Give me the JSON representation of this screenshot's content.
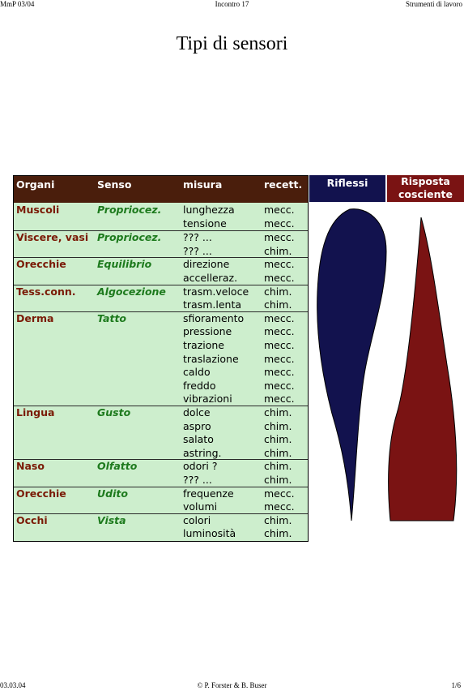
{
  "header": {
    "left": "MmP 03/04",
    "center": "Incontro 17",
    "right": "Strumenti di lavoro"
  },
  "footer": {
    "left": "03.03.04",
    "center": "© P. Forster & B. Buser",
    "right": "1/6"
  },
  "title": "Tipi di sensori",
  "table": {
    "columns": [
      "Organi",
      "Senso",
      "misura",
      "recett."
    ],
    "groups": [
      {
        "organ": "Muscoli",
        "senso": "Propriocez.",
        "rows": [
          [
            "lunghezza",
            "mecc."
          ],
          [
            "tensione",
            "mecc."
          ]
        ]
      },
      {
        "organ": "Viscere, vasi",
        "senso": "Propriocez.",
        "rows": [
          [
            "??? ...",
            "mecc."
          ],
          [
            "??? ...",
            "chim."
          ]
        ]
      },
      {
        "organ": "Orecchie",
        "senso": "Equilibrio",
        "rows": [
          [
            "direzione",
            "mecc."
          ],
          [
            "accelleraz.",
            "mecc."
          ]
        ]
      },
      {
        "organ": "Tess.conn.",
        "senso": "Algocezione",
        "rows": [
          [
            "trasm.veloce",
            "chim."
          ],
          [
            "trasm.lenta",
            "chim."
          ]
        ]
      },
      {
        "organ": "Derma",
        "senso": "Tatto",
        "rows": [
          [
            "sfioramento",
            "mecc."
          ],
          [
            "pressione",
            "mecc."
          ],
          [
            "trazione",
            "mecc."
          ],
          [
            "traslazione",
            "mecc."
          ],
          [
            "caldo",
            "mecc."
          ],
          [
            "freddo",
            "mecc."
          ],
          [
            "vibrazioni",
            "mecc."
          ]
        ]
      },
      {
        "organ": "Lingua",
        "senso": "Gusto",
        "rows": [
          [
            "dolce",
            "chim."
          ],
          [
            "aspro",
            "chim."
          ],
          [
            "salato",
            "chim."
          ],
          [
            "astring.",
            "chim."
          ]
        ]
      },
      {
        "organ": "Naso",
        "senso": "Olfatto",
        "rows": [
          [
            "odori ?",
            "chim."
          ],
          [
            "??? ...",
            "chim."
          ]
        ]
      },
      {
        "organ": "Orecchie",
        "senso": "Udito",
        "rows": [
          [
            "frequenze",
            "mecc."
          ],
          [
            "volumi",
            "mecc."
          ]
        ]
      },
      {
        "organ": "Occhi",
        "senso": "Vista",
        "rows": [
          [
            "colori",
            "chim."
          ],
          [
            "luminosità",
            "chim."
          ]
        ]
      }
    ]
  },
  "riflessi": {
    "label": "Riflessi",
    "color": "#12124e"
  },
  "risposta": {
    "label_line1": "Risposta",
    "label_line2": "cosciente",
    "color": "#7a1313"
  },
  "colors": {
    "table_bg": "#cdeecd",
    "header_bg": "#4a1e0c",
    "organ_text": "#7a1a06",
    "senso_text": "#1d7a1d"
  }
}
